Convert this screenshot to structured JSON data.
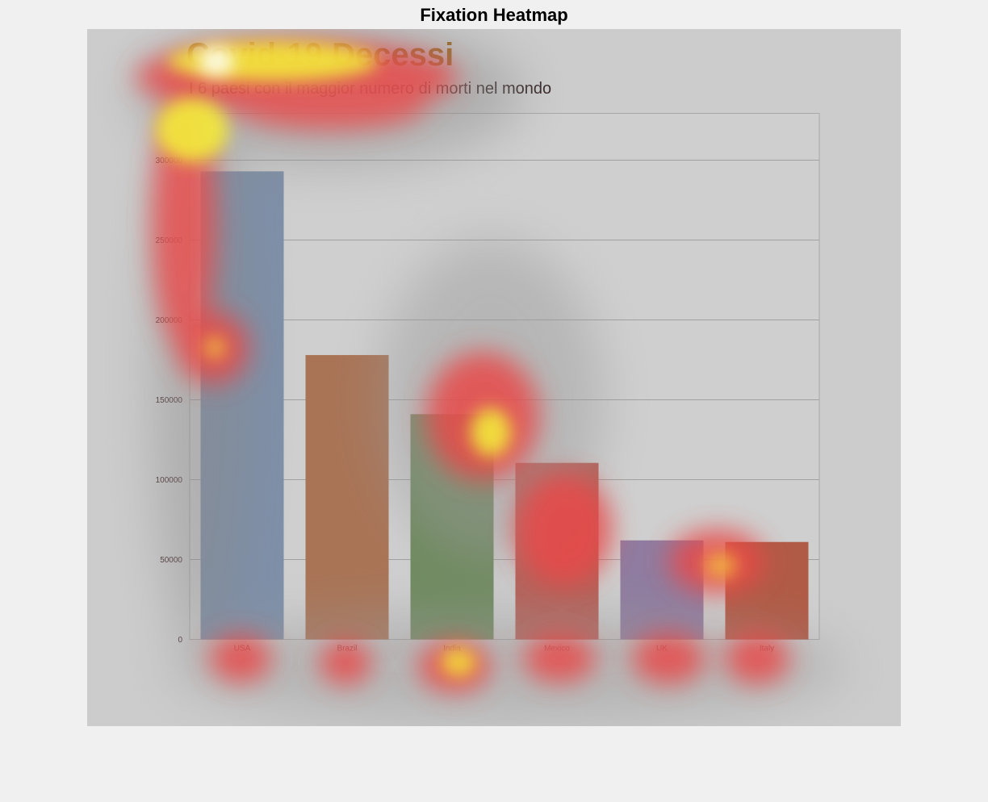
{
  "page": {
    "heading": "Fixation Heatmap"
  },
  "chart_data": {
    "type": "bar",
    "title": "Covid-19 Decessi",
    "subtitle": "I 6 paesi con il maggior numero di morti nel mondo",
    "categories": [
      "USA",
      "Brazil",
      "India",
      "Mexico",
      "UK",
      "Italy"
    ],
    "values": [
      293000,
      178000,
      141000,
      110500,
      62000,
      61000
    ],
    "colors": [
      "#7e8fa8",
      "#a97456",
      "#6f8a5f",
      "#b55f56",
      "#8f7ca0",
      "#b05b46"
    ],
    "yticks": [
      0,
      50000,
      100000,
      150000,
      200000,
      250000,
      300000
    ],
    "ylim": [
      0,
      330000
    ],
    "grid": true,
    "legend": "none"
  }
}
